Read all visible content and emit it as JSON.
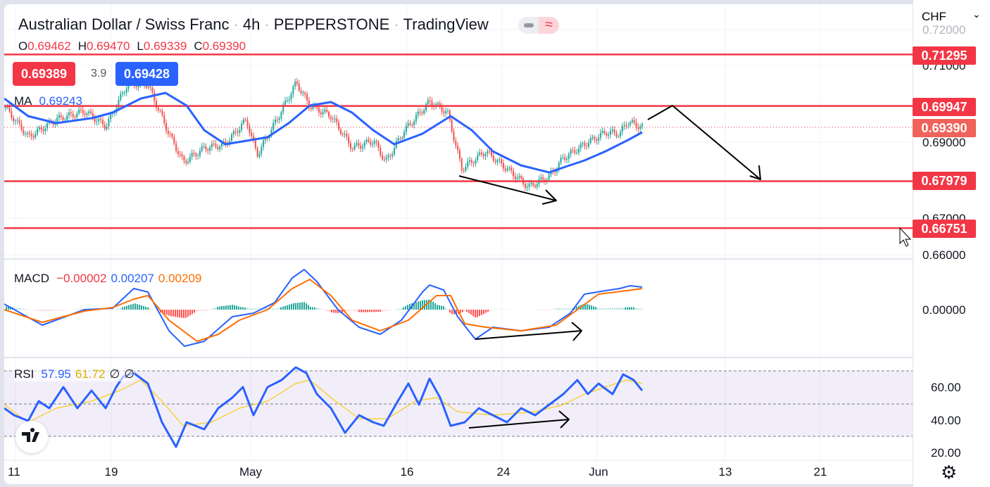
{
  "header": {
    "symbol": "Australian Dollar / Swiss Franc",
    "interval": "4h",
    "exchange": "PEPPERSTONE",
    "source": "TradingView",
    "dot": "·",
    "toggle_icon": "≈"
  },
  "ohlc": {
    "o_label": "O",
    "o": "0.69462",
    "h_label": "H",
    "h": "0.69470",
    "l_label": "L",
    "l": "0.69339",
    "c_label": "C",
    "c": "0.69390"
  },
  "quote": {
    "sell": "0.69389",
    "spread": "3.9",
    "buy": "0.69428"
  },
  "ma_legend": {
    "label": "MA",
    "value": "0.69243"
  },
  "macd_legend": {
    "label": "MACD",
    "hist": "−0.00002",
    "macd": "0.00207",
    "signal": "0.00209"
  },
  "rsi_legend": {
    "label": "RSI",
    "rsi": "57.95",
    "ma": "61.72",
    "extra1": "∅",
    "extra2": "∅"
  },
  "currency": "CHF",
  "price_ticks": [
    "0.72000",
    "0.71000",
    "0.69000",
    "0.67000",
    "0.66000"
  ],
  "price_labels": {
    "r1": "0.71295",
    "r2": "0.69947",
    "last": "0.69390",
    "s1": "0.67979",
    "s2": "0.66751"
  },
  "macd_ticks": [
    "0.00000"
  ],
  "rsi_ticks": [
    "60.00",
    "40.00",
    "20.00"
  ],
  "time_ticks": [
    "11",
    "19",
    "May",
    "16",
    "24",
    "Jun",
    "13",
    "21"
  ],
  "colors": {
    "up": "#26a69a",
    "down": "#ef5350",
    "level": "#f23645",
    "ma": "#2962ff",
    "signal": "#ff6d00",
    "rsi_ma": "#f7d13d"
  },
  "chart_data": {
    "type": "candlestick",
    "title": "Australian Dollar / Swiss Franc · 4h",
    "ylabel": "CHF",
    "ylim": [
      0.655,
      0.722
    ],
    "levels": [
      0.71295,
      0.69947,
      0.67979,
      0.66751
    ],
    "last_price": 0.6939,
    "price_path_days_from_apr11": [
      [
        -1,
        0.6996
      ],
      [
        1.1,
        0.6913
      ],
      [
        3.4,
        0.6959
      ],
      [
        5.8,
        0.6981
      ],
      [
        7.6,
        0.6941
      ],
      [
        9.4,
        0.7052
      ],
      [
        11.1,
        0.7052
      ],
      [
        12.9,
        0.6922
      ],
      [
        14.1,
        0.6848
      ],
      [
        15.9,
        0.6885
      ],
      [
        17.6,
        0.6894
      ],
      [
        19.4,
        0.6959
      ],
      [
        20.3,
        0.6867
      ],
      [
        21.8,
        0.695
      ],
      [
        23.6,
        0.7056
      ],
      [
        24.7,
        0.6996
      ],
      [
        26.5,
        0.6969
      ],
      [
        28.3,
        0.6885
      ],
      [
        30.1,
        0.6904
      ],
      [
        31.1,
        0.6848
      ],
      [
        32.7,
        0.6931
      ],
      [
        34.8,
        0.7006
      ],
      [
        36.3,
        0.6978
      ],
      [
        37.5,
        0.683
      ],
      [
        39.5,
        0.6876
      ],
      [
        41.3,
        0.683
      ],
      [
        43.1,
        0.6783
      ],
      [
        44.9,
        0.6811
      ],
      [
        46,
        0.6857
      ],
      [
        47.8,
        0.6894
      ],
      [
        49.6,
        0.6926
      ],
      [
        50.8,
        0.6922
      ],
      [
        51.4,
        0.6954
      ],
      [
        52.7,
        0.6939
      ]
    ],
    "rsi_levels": [
      70,
      50,
      30
    ]
  }
}
